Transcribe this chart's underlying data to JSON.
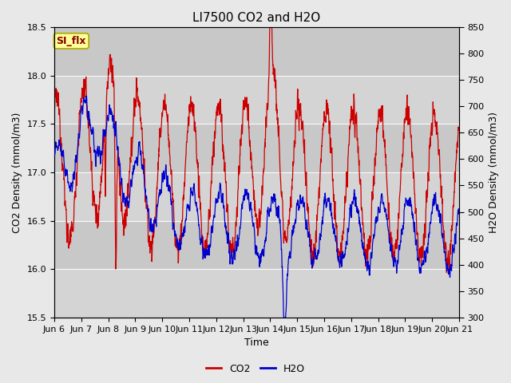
{
  "title": "LI7500 CO2 and H2O",
  "xlabel": "Time",
  "ylabel_left": "CO2 Density (mmol/m3)",
  "ylabel_right": "H2O Density (mmol/m3)",
  "ylim_left": [
    15.5,
    18.5
  ],
  "ylim_right": [
    300,
    850
  ],
  "yticks_left": [
    15.5,
    16.0,
    16.5,
    17.0,
    17.5,
    18.0,
    18.5
  ],
  "yticks_right": [
    300,
    350,
    400,
    450,
    500,
    550,
    600,
    650,
    700,
    750,
    800,
    850
  ],
  "xtick_labels": [
    "Jun 6",
    "Jun 7",
    "Jun 8",
    "Jun 9",
    "Jun 10",
    "Jun 11",
    "Jun 12",
    "Jun 13",
    "Jun 14",
    "Jun 15",
    "Jun 16",
    "Jun 17",
    "Jun 18",
    "Jun 19",
    "Jun 20",
    "Jun 21"
  ],
  "co2_color": "#cc0000",
  "h2o_color": "#0000cc",
  "fig_facecolor": "#e8e8e8",
  "plot_facecolor": "#d4d4d4",
  "annotation_text": "SI_flx",
  "annotation_facecolor": "#ffff99",
  "annotation_edgecolor": "#aaa800",
  "annotation_textcolor": "#880000",
  "legend_co2": "CO2",
  "legend_h2o": "H2O",
  "title_fontsize": 11,
  "axis_label_fontsize": 9,
  "tick_fontsize": 8,
  "line_width": 0.9,
  "grid_color": "#ffffff",
  "grid_linewidth": 0.7,
  "band_colors": [
    "#d4d4d4",
    "#c8c8c8"
  ],
  "figsize": [
    6.4,
    4.8
  ],
  "dpi": 100
}
